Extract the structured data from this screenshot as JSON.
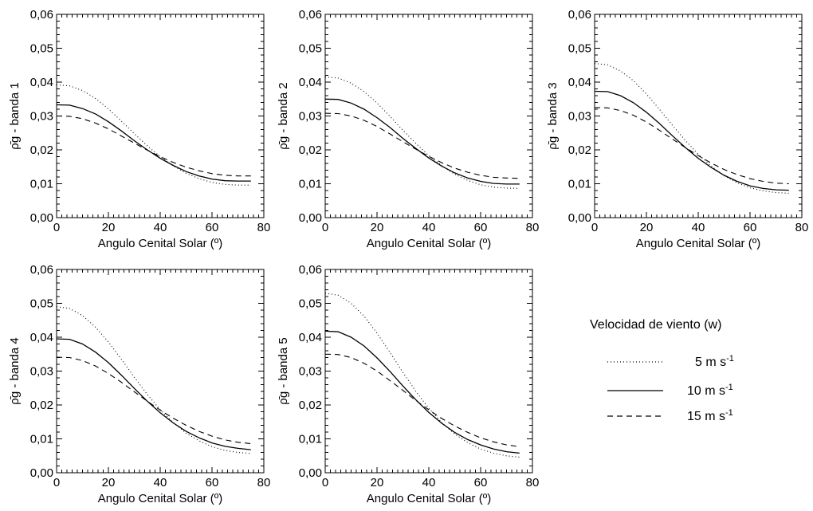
{
  "chart_data": [
    {
      "type": "line",
      "title": "",
      "xlabel": "Angulo Cenital Solar (º)",
      "ylabel": "ρ̄g - banda 1",
      "xlim": [
        0,
        80
      ],
      "ylim": [
        0.0,
        0.06
      ],
      "x_ticks": [
        "0",
        "20",
        "40",
        "60",
        "80"
      ],
      "y_ticks": [
        "0,00",
        "0,01",
        "0,02",
        "0,03",
        "0,04",
        "0,05",
        "0,06"
      ],
      "x": [
        0,
        5,
        10,
        15,
        20,
        25,
        30,
        35,
        40,
        45,
        50,
        55,
        60,
        65,
        70,
        75
      ],
      "series": [
        {
          "name": "5 m s-1",
          "style": "dotted",
          "values": [
            0.0392,
            0.0389,
            0.0375,
            0.0352,
            0.0321,
            0.0285,
            0.0248,
            0.0212,
            0.018,
            0.0153,
            0.0131,
            0.0115,
            0.0104,
            0.0098,
            0.0096,
            0.0096
          ]
        },
        {
          "name": "10 m s-1",
          "style": "solid",
          "values": [
            0.0333,
            0.0332,
            0.0322,
            0.0306,
            0.0283,
            0.0256,
            0.0227,
            0.02,
            0.0175,
            0.0154,
            0.0136,
            0.0123,
            0.0114,
            0.0109,
            0.0108,
            0.0108
          ]
        },
        {
          "name": "15 m s-1",
          "style": "dashed",
          "values": [
            0.03,
            0.0299,
            0.0292,
            0.0279,
            0.0262,
            0.0241,
            0.022,
            0.0199,
            0.018,
            0.0163,
            0.0149,
            0.0138,
            0.013,
            0.0125,
            0.0123,
            0.0123
          ]
        }
      ]
    },
    {
      "type": "line",
      "title": "",
      "xlabel": "Angulo Cenital Solar (º)",
      "ylabel": "ρ̄g - banda 2",
      "xlim": [
        0,
        80
      ],
      "ylim": [
        0.0,
        0.06
      ],
      "x_ticks": [
        "0",
        "20",
        "40",
        "60",
        "80"
      ],
      "y_ticks": [
        "0,00",
        "0,01",
        "0,02",
        "0,03",
        "0,04",
        "0,05",
        "0,06"
      ],
      "x": [
        0,
        5,
        10,
        15,
        20,
        25,
        30,
        35,
        40,
        45,
        50,
        55,
        60,
        65,
        70,
        75
      ],
      "series": [
        {
          "name": "5 m s-1",
          "style": "dotted",
          "values": [
            0.0415,
            0.0412,
            0.0397,
            0.0372,
            0.0338,
            0.0299,
            0.0258,
            0.0219,
            0.0183,
            0.0153,
            0.0128,
            0.011,
            0.0097,
            0.009,
            0.0087,
            0.0086
          ]
        },
        {
          "name": "10 m s-1",
          "style": "solid",
          "values": [
            0.035,
            0.0349,
            0.0338,
            0.032,
            0.0295,
            0.0266,
            0.0234,
            0.0204,
            0.0176,
            0.0152,
            0.0132,
            0.0117,
            0.0107,
            0.0101,
            0.0099,
            0.0099
          ]
        },
        {
          "name": "15 m s-1",
          "style": "dashed",
          "values": [
            0.0308,
            0.0307,
            0.03,
            0.0287,
            0.0269,
            0.0247,
            0.0224,
            0.0202,
            0.0181,
            0.0162,
            0.0146,
            0.0134,
            0.0125,
            0.0119,
            0.0117,
            0.0116
          ]
        }
      ]
    },
    {
      "type": "line",
      "title": "",
      "xlabel": "Angulo Cenital Solar (º)",
      "ylabel": "ρ̄g - banda 3",
      "xlim": [
        0,
        80
      ],
      "ylim": [
        0.0,
        0.06
      ],
      "x_ticks": [
        "0",
        "20",
        "40",
        "60",
        "80"
      ],
      "y_ticks": [
        "0,00",
        "0,01",
        "0,02",
        "0,03",
        "0,04",
        "0,05",
        "0,06"
      ],
      "x": [
        0,
        5,
        10,
        15,
        20,
        25,
        30,
        35,
        40,
        45,
        50,
        55,
        60,
        65,
        70,
        75
      ],
      "series": [
        {
          "name": "5 m s-1",
          "style": "dotted",
          "values": [
            0.0455,
            0.0451,
            0.0433,
            0.0404,
            0.0365,
            0.032,
            0.0273,
            0.0228,
            0.0187,
            0.0152,
            0.0124,
            0.0103,
            0.0088,
            0.0079,
            0.0074,
            0.0072
          ]
        },
        {
          "name": "10 m s-1",
          "style": "solid",
          "values": [
            0.0373,
            0.0372,
            0.036,
            0.0339,
            0.0311,
            0.0278,
            0.0242,
            0.0207,
            0.0175,
            0.0148,
            0.0125,
            0.0107,
            0.0094,
            0.0086,
            0.0082,
            0.0081
          ]
        },
        {
          "name": "15 m s-1",
          "style": "dashed",
          "values": [
            0.0325,
            0.0324,
            0.0316,
            0.0302,
            0.0282,
            0.0258,
            0.0232,
            0.0207,
            0.0183,
            0.0161,
            0.0142,
            0.0127,
            0.0115,
            0.0107,
            0.0102,
            0.01
          ]
        }
      ]
    },
    {
      "type": "line",
      "title": "",
      "xlabel": "Angulo Cenital Solar (º)",
      "ylabel": "ρ̄g - banda 4",
      "xlim": [
        0,
        80
      ],
      "ylim": [
        0.0,
        0.06
      ],
      "x_ticks": [
        "0",
        "20",
        "40",
        "60",
        "80"
      ],
      "y_ticks": [
        "0,00",
        "0,01",
        "0,02",
        "0,03",
        "0,04",
        "0,05",
        "0,06"
      ],
      "x": [
        0,
        5,
        10,
        15,
        20,
        25,
        30,
        35,
        40,
        45,
        50,
        55,
        60,
        65,
        70,
        75
      ],
      "series": [
        {
          "name": "5 m s-1",
          "style": "dotted",
          "values": [
            0.049,
            0.0485,
            0.0464,
            0.043,
            0.0386,
            0.0335,
            0.0282,
            0.0231,
            0.0186,
            0.0148,
            0.0117,
            0.0094,
            0.0077,
            0.0066,
            0.006,
            0.0057
          ]
        },
        {
          "name": "10 m s-1",
          "style": "solid",
          "values": [
            0.0395,
            0.0394,
            0.038,
            0.0356,
            0.0325,
            0.0288,
            0.0249,
            0.0211,
            0.0177,
            0.0147,
            0.0122,
            0.0103,
            0.0088,
            0.0078,
            0.0072,
            0.0068
          ]
        },
        {
          "name": "15 m s-1",
          "style": "dashed",
          "values": [
            0.0341,
            0.034,
            0.0331,
            0.0315,
            0.0293,
            0.0267,
            0.0239,
            0.0211,
            0.0185,
            0.0161,
            0.014,
            0.0122,
            0.0108,
            0.0097,
            0.009,
            0.0086
          ]
        }
      ]
    },
    {
      "type": "line",
      "title": "",
      "xlabel": "Angulo Cenital Solar (º)",
      "ylabel": "ρ̄g - banda 5",
      "xlim": [
        0,
        80
      ],
      "ylim": [
        0.0,
        0.06
      ],
      "x_ticks": [
        "0",
        "20",
        "40",
        "60",
        "80"
      ],
      "y_ticks": [
        "0,00",
        "0,01",
        "0,02",
        "0,03",
        "0,04",
        "0,05",
        "0,06"
      ],
      "x": [
        0,
        5,
        10,
        15,
        20,
        25,
        30,
        35,
        40,
        45,
        50,
        55,
        60,
        65,
        70,
        75
      ],
      "series": [
        {
          "name": "5 m s-1",
          "style": "dotted",
          "values": [
            0.053,
            0.0524,
            0.05,
            0.0462,
            0.0412,
            0.0355,
            0.0296,
            0.024,
            0.019,
            0.0148,
            0.0114,
            0.0089,
            0.007,
            0.0058,
            0.005,
            0.0046
          ]
        },
        {
          "name": "10 m s-1",
          "style": "solid",
          "values": [
            0.0418,
            0.0416,
            0.04,
            0.0374,
            0.0339,
            0.0299,
            0.0256,
            0.0215,
            0.0178,
            0.0146,
            0.0119,
            0.0098,
            0.0082,
            0.007,
            0.0062,
            0.0058
          ]
        },
        {
          "name": "15 m s-1",
          "style": "dashed",
          "values": [
            0.035,
            0.0349,
            0.034,
            0.0323,
            0.03,
            0.0272,
            0.0243,
            0.0213,
            0.0186,
            0.016,
            0.0138,
            0.0119,
            0.0103,
            0.0091,
            0.0082,
            0.0077
          ]
        }
      ]
    }
  ],
  "legend": {
    "title": "Velocidad de viento (w)",
    "entries": [
      {
        "label": "5 m s-1",
        "style": "dotted"
      },
      {
        "label": "10 m s-1",
        "style": "solid"
      },
      {
        "label": "15 m s-1",
        "style": "dashed"
      }
    ]
  },
  "colors": {
    "line": "#000000",
    "axes": "#000000",
    "background": "#ffffff"
  }
}
